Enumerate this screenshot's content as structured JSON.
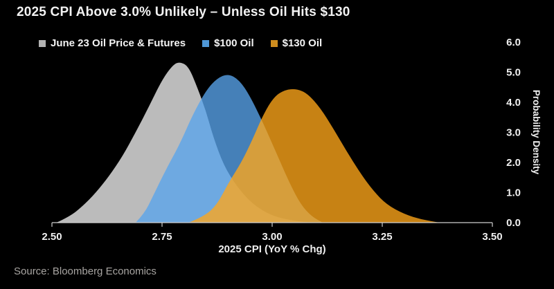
{
  "title": "2025 CPI Above 3.0% Unlikely – Unless Oil Hits $130",
  "source": "Source: Bloomberg Economics",
  "colors": {
    "background": "#000000",
    "title_text": "#f2f2f2",
    "axis_text": "#f0f0f0",
    "axis_line": "#d0d0d0",
    "source_text": "#a8a5a2"
  },
  "legend": {
    "position": "top",
    "items": [
      {
        "label": "June 23 Oil Price & Futures",
        "swatch_color": "#b3b3b3"
      },
      {
        "label": "$100 Oil",
        "swatch_color": "#4f97d7"
      },
      {
        "label": "$130 Oil",
        "swatch_color": "#cf8d1e"
      }
    ]
  },
  "chart_data": {
    "type": "area",
    "title": "2025 CPI Above 3.0% Unlikely – Unless Oil Hits $130",
    "xlabel": "2025 CPI (YoY % Chg)",
    "ylabel": "Probability Density",
    "xlim": [
      2.5,
      3.5
    ],
    "ylim": [
      0.0,
      6.0
    ],
    "x_ticks": [
      "2.50",
      "2.75",
      "3.00",
      "3.25",
      "3.50"
    ],
    "x_tick_values": [
      2.5,
      2.75,
      3.0,
      3.25,
      3.5
    ],
    "y_ticks": [
      "0.0",
      "1.0",
      "2.0",
      "3.0",
      "4.0",
      "5.0",
      "6.0"
    ],
    "y_tick_values": [
      0.0,
      1.0,
      2.0,
      3.0,
      4.0,
      5.0,
      6.0
    ],
    "grid": false,
    "legend_position": "top",
    "series": [
      {
        "name": "June 23 Oil Price & Futures",
        "fill": "rgba(234,234,234,0.80)",
        "peak_x": 2.79,
        "peak_density": 5.35,
        "points": [
          [
            2.51,
            0.0
          ],
          [
            2.54,
            0.2
          ],
          [
            2.57,
            0.55
          ],
          [
            2.6,
            1.0
          ],
          [
            2.63,
            1.55
          ],
          [
            2.66,
            2.2
          ],
          [
            2.69,
            3.0
          ],
          [
            2.72,
            3.85
          ],
          [
            2.75,
            4.75
          ],
          [
            2.775,
            5.25
          ],
          [
            2.79,
            5.35
          ],
          [
            2.81,
            5.2
          ],
          [
            2.83,
            4.5
          ],
          [
            2.85,
            3.7
          ],
          [
            2.865,
            2.9
          ],
          [
            2.89,
            1.9
          ],
          [
            2.92,
            1.2
          ],
          [
            2.95,
            0.7
          ],
          [
            2.98,
            0.38
          ],
          [
            3.01,
            0.18
          ],
          [
            3.05,
            0.06
          ],
          [
            3.09,
            0.0
          ]
        ]
      },
      {
        "name": "$100 Oil",
        "fill": "rgba(88,164,236,0.78)",
        "peak_x": 2.9,
        "peak_density": 4.95,
        "points": [
          [
            2.69,
            0.0
          ],
          [
            2.71,
            0.3
          ],
          [
            2.73,
            0.9
          ],
          [
            2.76,
            1.8
          ],
          [
            2.79,
            2.6
          ],
          [
            2.82,
            3.6
          ],
          [
            2.85,
            4.4
          ],
          [
            2.875,
            4.8
          ],
          [
            2.9,
            4.95
          ],
          [
            2.925,
            4.75
          ],
          [
            2.95,
            4.2
          ],
          [
            2.98,
            3.3
          ],
          [
            3.01,
            2.3
          ],
          [
            3.04,
            1.3
          ],
          [
            3.065,
            0.6
          ],
          [
            3.09,
            0.2
          ],
          [
            3.115,
            0.0
          ]
        ]
      },
      {
        "name": "$130 Oil",
        "fill": "rgba(255,167,26,0.78)",
        "peak_x": 3.05,
        "peak_density": 4.45,
        "points": [
          [
            2.81,
            0.0
          ],
          [
            2.845,
            0.2
          ],
          [
            2.875,
            0.6
          ],
          [
            2.9,
            1.3
          ],
          [
            2.93,
            2.0
          ],
          [
            2.955,
            2.75
          ],
          [
            2.98,
            3.6
          ],
          [
            3.005,
            4.2
          ],
          [
            3.03,
            4.42
          ],
          [
            3.055,
            4.45
          ],
          [
            3.08,
            4.3
          ],
          [
            3.11,
            3.8
          ],
          [
            3.14,
            3.1
          ],
          [
            3.17,
            2.35
          ],
          [
            3.2,
            1.65
          ],
          [
            3.23,
            1.05
          ],
          [
            3.26,
            0.6
          ],
          [
            3.3,
            0.28
          ],
          [
            3.34,
            0.1
          ],
          [
            3.38,
            0.0
          ]
        ]
      }
    ]
  }
}
